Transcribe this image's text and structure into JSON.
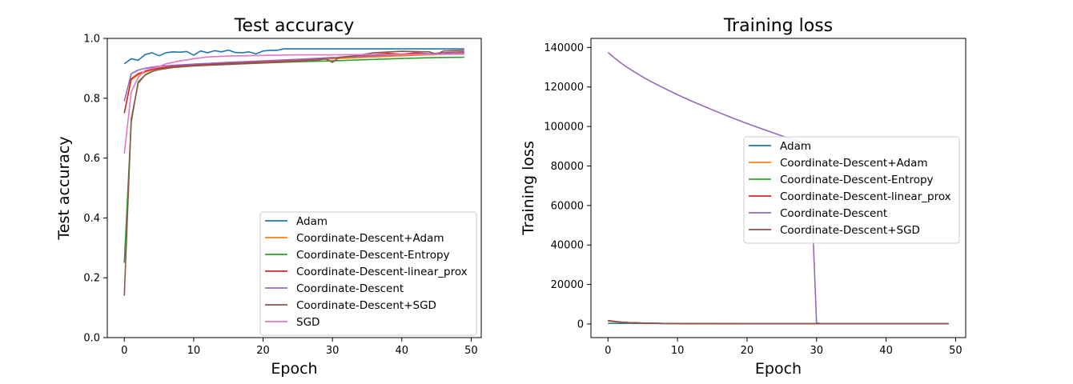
{
  "chart_data": [
    {
      "type": "line",
      "title": "Test accuracy",
      "xlabel": "Epoch",
      "ylabel": "Test accuracy",
      "xlim": [
        -2.45,
        51.45
      ],
      "ylim": [
        0.0,
        1.0
      ],
      "xticks": [
        0,
        10,
        20,
        30,
        40,
        50
      ],
      "yticks": [
        0.0,
        0.2,
        0.4,
        0.6,
        0.8,
        1.0
      ],
      "ytick_labels": [
        "0.0",
        "0.2",
        "0.4",
        "0.6",
        "0.8",
        "1.0"
      ],
      "legend_position": "lower-right",
      "series": [
        {
          "name": "Adam",
          "color": "#1f77b4",
          "x": [
            0,
            1,
            2,
            3,
            4,
            5,
            6,
            7,
            8,
            9,
            10,
            11,
            12,
            13,
            14,
            15,
            16,
            17,
            18,
            19,
            20,
            21,
            22,
            23,
            24,
            25,
            30,
            35,
            40,
            45,
            49
          ],
          "y": [
            0.915,
            0.932,
            0.927,
            0.946,
            0.952,
            0.942,
            0.952,
            0.955,
            0.954,
            0.956,
            0.944,
            0.958,
            0.952,
            0.959,
            0.955,
            0.961,
            0.953,
            0.952,
            0.955,
            0.948,
            0.958,
            0.96,
            0.96,
            0.965,
            0.965,
            0.965,
            0.965,
            0.965,
            0.965,
            0.965,
            0.965
          ]
        },
        {
          "name": "Coordinate-Descent+Adam",
          "color": "#ff7f0e",
          "x": [
            0,
            1,
            2,
            3,
            4,
            5,
            7,
            10,
            15,
            20,
            25,
            30,
            35,
            40,
            45,
            49
          ],
          "y": [
            0.75,
            0.862,
            0.878,
            0.887,
            0.895,
            0.9,
            0.905,
            0.91,
            0.915,
            0.92,
            0.927,
            0.932,
            0.937,
            0.942,
            0.946,
            0.95
          ]
        },
        {
          "name": "Coordinate-Descent-Entropy",
          "color": "#2ca02c",
          "x": [
            0,
            1,
            2,
            3,
            4,
            5,
            7,
            10,
            15,
            20,
            25,
            30,
            35,
            40,
            45,
            49
          ],
          "y": [
            0.25,
            0.72,
            0.855,
            0.877,
            0.889,
            0.896,
            0.903,
            0.909,
            0.915,
            0.918,
            0.922,
            0.925,
            0.929,
            0.933,
            0.936,
            0.937
          ]
        },
        {
          "name": "Coordinate-Descent-linear_prox",
          "color": "#d62728",
          "x": [
            0,
            1,
            2,
            3,
            4,
            5,
            7,
            10,
            15,
            20,
            25,
            30,
            35,
            38,
            40,
            42,
            44,
            46,
            49
          ],
          "y": [
            0.75,
            0.865,
            0.882,
            0.89,
            0.896,
            0.901,
            0.906,
            0.912,
            0.918,
            0.923,
            0.929,
            0.935,
            0.944,
            0.95,
            0.947,
            0.952,
            0.948,
            0.952,
            0.955
          ]
        },
        {
          "name": "Coordinate-Descent",
          "color": "#9467bd",
          "x": [
            0,
            1,
            2,
            3,
            4,
            5,
            7,
            10,
            15,
            20,
            25,
            30,
            35,
            40,
            45,
            49
          ],
          "y": [
            0.79,
            0.882,
            0.894,
            0.9,
            0.904,
            0.907,
            0.91,
            0.914,
            0.92,
            0.925,
            0.93,
            0.936,
            0.941,
            0.946,
            0.95,
            0.953
          ]
        },
        {
          "name": "Coordinate-Descent+SGD",
          "color": "#8c564b",
          "x": [
            0,
            1,
            2,
            3,
            4,
            5,
            7,
            10,
            15,
            20,
            25,
            28,
            29,
            30,
            31,
            33,
            36,
            40,
            44,
            45,
            46,
            49
          ],
          "y": [
            0.14,
            0.73,
            0.85,
            0.878,
            0.89,
            0.896,
            0.903,
            0.908,
            0.913,
            0.918,
            0.924,
            0.928,
            0.932,
            0.92,
            0.937,
            0.941,
            0.952,
            0.957,
            0.955,
            0.947,
            0.958,
            0.96
          ]
        },
        {
          "name": "SGD",
          "color": "#e377c2",
          "x": [
            0,
            1,
            2,
            3,
            4,
            5,
            6,
            7,
            8,
            9,
            10,
            11,
            12,
            15,
            20,
            25,
            30,
            35,
            40,
            45,
            49
          ],
          "y": [
            0.615,
            0.82,
            0.87,
            0.893,
            0.9,
            0.906,
            0.915,
            0.92,
            0.925,
            0.928,
            0.932,
            0.935,
            0.938,
            0.941,
            0.943,
            0.945,
            0.945,
            0.946,
            0.946,
            0.947,
            0.947
          ]
        }
      ]
    },
    {
      "type": "line",
      "title": "Training loss",
      "xlabel": "Epoch",
      "ylabel": "Training loss",
      "xlim": [
        -2.45,
        51.45
      ],
      "ylim": [
        -6900,
        144600
      ],
      "xticks": [
        0,
        10,
        20,
        30,
        40,
        50
      ],
      "yticks": [
        0,
        20000,
        40000,
        60000,
        80000,
        100000,
        120000,
        140000
      ],
      "ytick_labels": [
        "0",
        "20000",
        "40000",
        "60000",
        "80000",
        "100000",
        "120000",
        "140000"
      ],
      "legend_position": "center-right",
      "series": [
        {
          "name": "Adam",
          "color": "#1f77b4",
          "x": [
            0,
            5,
            10,
            20,
            30,
            40,
            49
          ],
          "y": [
            300,
            250,
            200,
            150,
            150,
            150,
            150
          ]
        },
        {
          "name": "Coordinate-Descent+Adam",
          "color": "#ff7f0e",
          "x": [
            0,
            1,
            2,
            3,
            5,
            8,
            12,
            20,
            30,
            40,
            49
          ],
          "y": [
            1500,
            1100,
            800,
            600,
            400,
            250,
            150,
            100,
            100,
            100,
            100
          ]
        },
        {
          "name": "Coordinate-Descent-Entropy",
          "color": "#2ca02c",
          "x": [
            0,
            1,
            2,
            3,
            5,
            8,
            12,
            20,
            30,
            40,
            49
          ],
          "y": [
            1600,
            1200,
            900,
            700,
            450,
            280,
            180,
            120,
            100,
            100,
            100
          ]
        },
        {
          "name": "Coordinate-Descent-linear_prox",
          "color": "#d62728",
          "x": [
            0,
            1,
            2,
            3,
            5,
            8,
            12,
            20,
            30,
            40,
            49
          ],
          "y": [
            1800,
            1300,
            950,
            720,
            460,
            290,
            180,
            120,
            100,
            100,
            100
          ]
        },
        {
          "name": "Coordinate-Descent",
          "color": "#9467bd",
          "x": [
            0,
            1,
            2,
            3,
            4,
            5,
            6,
            8,
            10,
            12,
            14,
            16,
            18,
            20,
            22,
            24,
            26,
            28,
            29,
            29.5,
            30,
            31,
            35,
            40,
            49
          ],
          "y": [
            137500,
            134500,
            131800,
            129400,
            127200,
            125100,
            123100,
            119500,
            116100,
            112900,
            109900,
            107000,
            104200,
            101500,
            99000,
            96500,
            94000,
            91500,
            82000,
            45000,
            500,
            100,
            100,
            100,
            100
          ]
        },
        {
          "name": "Coordinate-Descent+SGD",
          "color": "#8c564b",
          "x": [
            0,
            1,
            2,
            3,
            5,
            8,
            12,
            20,
            30,
            40,
            49
          ],
          "y": [
            1700,
            1250,
            900,
            700,
            450,
            280,
            170,
            110,
            100,
            100,
            100
          ]
        }
      ]
    }
  ]
}
